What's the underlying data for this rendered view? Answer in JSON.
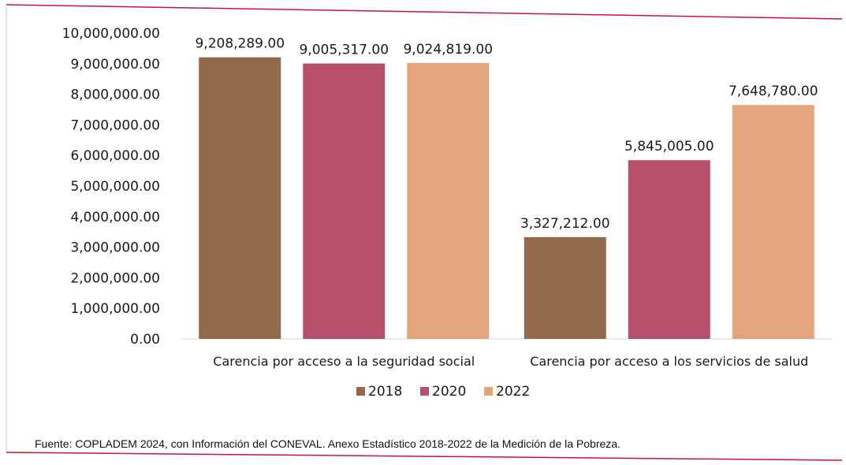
{
  "chart_data": {
    "type": "bar",
    "categories": [
      "Carencia por acceso a la seguridad social",
      "Carencia por acceso a los servicios de salud"
    ],
    "series": [
      {
        "name": "2018",
        "values": [
          9208289.0,
          3327212.0
        ],
        "labels": [
          "9,208,289.00",
          "3,327,212.00"
        ],
        "color": "#93694b"
      },
      {
        "name": "2020",
        "values": [
          9005317.0,
          5845005.0
        ],
        "labels": [
          "9,005,317.00",
          "5,845,005.00"
        ],
        "color": "#b7506b"
      },
      {
        "name": "2022",
        "values": [
          9024819.0,
          7648780.0
        ],
        "labels": [
          "9,024,819.00",
          "7,648,780.00"
        ],
        "color": "#e2a57c"
      }
    ],
    "yticks": [
      0,
      1000000,
      2000000,
      3000000,
      4000000,
      5000000,
      6000000,
      7000000,
      8000000,
      9000000,
      10000000
    ],
    "ytick_labels": [
      "0.00",
      "1,000,000.00",
      "2,000,000.00",
      "3,000,000.00",
      "4,000,000.00",
      "5,000,000.00",
      "6,000,000.00",
      "7,000,000.00",
      "8,000,000.00",
      "9,000,000.00",
      "10,000,000.00"
    ],
    "ylim": [
      0,
      10000000
    ],
    "grid": false,
    "legend_position": "bottom-center"
  },
  "source_note": "Fuente: COPLADEM 2024, con Información del CONEVAL. Anexo Estadístico 2018-2022 de la Medición de la Pobreza.",
  "colors": {
    "frame_accent": "#c0173a",
    "axis": "#d9d9d9"
  }
}
